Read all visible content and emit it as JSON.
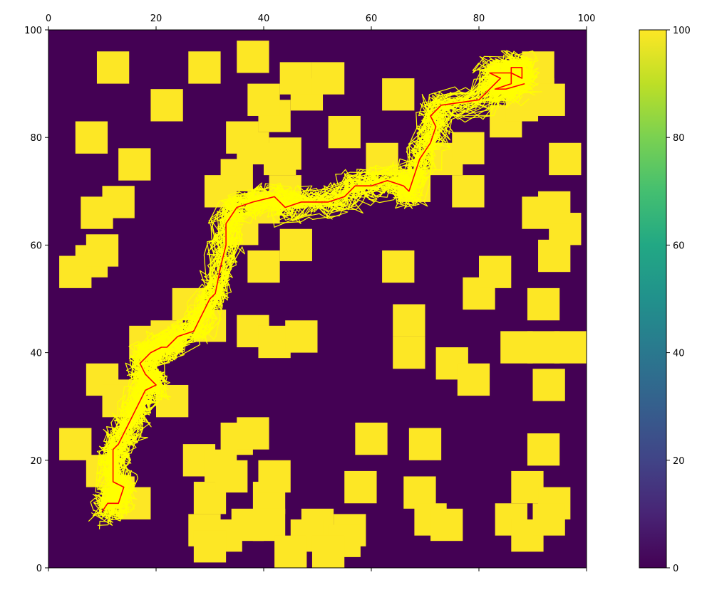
{
  "chart_data": {
    "type": "heatmap",
    "title": "",
    "xlabel": "",
    "ylabel": "",
    "xlim": [
      0,
      100
    ],
    "ylim": [
      0,
      100
    ],
    "x_ticks": [
      "0",
      "20",
      "40",
      "60",
      "80",
      "100"
    ],
    "y_ticks": [
      "0",
      "20",
      "40",
      "60",
      "80",
      "100"
    ],
    "grid": false,
    "colormap": "viridis",
    "colors": {
      "background": "#440154",
      "obstacle": "#fde725",
      "trajectories": "#ffff00",
      "best_path": "#ff0000"
    },
    "colorbar": {
      "min": 0,
      "max": 100,
      "ticks": [
        "0",
        "20",
        "40",
        "60",
        "80",
        "100"
      ]
    },
    "obstacles": [
      [
        86,
        9
      ],
      [
        89,
        15
      ],
      [
        10,
        18
      ],
      [
        15,
        32
      ],
      [
        13,
        14
      ],
      [
        16,
        12
      ],
      [
        30,
        13
      ],
      [
        34,
        17
      ],
      [
        41,
        13
      ],
      [
        41,
        8
      ],
      [
        29,
        7
      ],
      [
        37,
        8
      ],
      [
        58,
        15
      ],
      [
        5,
        23
      ],
      [
        28,
        20
      ],
      [
        32,
        19
      ],
      [
        35,
        24
      ],
      [
        38,
        25
      ],
      [
        42,
        17
      ],
      [
        50,
        8
      ],
      [
        48,
        6
      ],
      [
        56,
        7
      ],
      [
        55,
        5
      ],
      [
        52,
        3
      ],
      [
        33,
        6
      ],
      [
        30,
        4
      ],
      [
        45,
        3
      ],
      [
        69,
        14
      ],
      [
        71,
        9
      ],
      [
        74,
        8
      ],
      [
        70,
        23
      ],
      [
        89,
        6
      ],
      [
        94,
        12
      ],
      [
        93,
        9
      ],
      [
        92,
        22
      ],
      [
        60,
        24
      ],
      [
        23,
        31
      ],
      [
        18,
        42
      ],
      [
        22,
        43
      ],
      [
        26,
        49
      ],
      [
        30,
        45
      ],
      [
        38,
        44
      ],
      [
        42,
        42
      ],
      [
        47,
        43
      ],
      [
        10,
        35
      ],
      [
        13,
        31
      ],
      [
        8,
        57
      ],
      [
        5,
        55
      ],
      [
        10,
        59
      ],
      [
        67,
        40
      ],
      [
        67,
        46
      ],
      [
        75,
        38
      ],
      [
        79,
        35
      ],
      [
        80,
        51
      ],
      [
        83,
        55
      ],
      [
        87,
        41
      ],
      [
        92,
        41
      ],
      [
        97,
        41
      ],
      [
        93,
        34
      ],
      [
        92,
        49
      ],
      [
        94,
        58
      ],
      [
        96,
        63
      ],
      [
        94,
        67
      ],
      [
        91,
        66
      ],
      [
        96,
        76
      ],
      [
        65,
        56
      ],
      [
        46,
        60
      ],
      [
        40,
        56
      ],
      [
        36,
        63
      ],
      [
        40,
        67
      ],
      [
        35,
        73
      ],
      [
        32,
        70
      ],
      [
        44,
        70
      ],
      [
        36,
        80
      ],
      [
        38,
        78
      ],
      [
        44,
        77
      ],
      [
        43,
        76
      ],
      [
        42,
        84
      ],
      [
        40,
        87
      ],
      [
        48,
        88
      ],
      [
        52,
        91
      ],
      [
        46,
        91
      ],
      [
        38,
        95
      ],
      [
        22,
        86
      ],
      [
        29,
        93
      ],
      [
        8,
        80
      ],
      [
        12,
        93
      ],
      [
        16,
        75
      ],
      [
        13,
        68
      ],
      [
        9,
        66
      ],
      [
        55,
        81
      ],
      [
        65,
        88
      ],
      [
        62,
        76
      ],
      [
        68,
        71
      ],
      [
        74,
        76
      ],
      [
        78,
        70
      ],
      [
        78,
        78
      ],
      [
        85,
        83
      ],
      [
        88,
        86
      ],
      [
        91,
        88
      ],
      [
        91,
        93
      ],
      [
        85,
        91
      ],
      [
        93,
        87
      ]
    ],
    "best_path": [
      [
        88.5,
        90
      ],
      [
        85,
        89
      ],
      [
        83,
        89
      ],
      [
        86,
        90
      ],
      [
        86,
        93
      ],
      [
        88,
        93
      ],
      [
        88,
        91
      ],
      [
        86,
        92
      ],
      [
        82,
        92
      ],
      [
        84,
        91
      ],
      [
        80,
        87
      ],
      [
        73,
        86
      ],
      [
        71,
        84
      ],
      [
        72,
        82
      ],
      [
        71,
        79
      ],
      [
        69,
        76
      ],
      [
        68,
        73
      ],
      [
        67,
        70
      ],
      [
        66,
        71
      ],
      [
        63,
        72
      ],
      [
        60,
        71
      ],
      [
        57,
        71
      ],
      [
        55,
        69
      ],
      [
        52,
        68
      ],
      [
        47,
        68
      ],
      [
        44,
        67
      ],
      [
        42,
        69
      ],
      [
        38,
        68
      ],
      [
        35,
        67
      ],
      [
        33,
        64
      ],
      [
        33,
        60
      ],
      [
        32,
        56
      ],
      [
        31,
        51
      ],
      [
        30,
        50
      ],
      [
        28,
        46
      ],
      [
        27,
        44
      ],
      [
        24,
        43
      ],
      [
        22,
        41
      ],
      [
        21,
        41
      ],
      [
        19,
        40
      ],
      [
        17,
        38
      ],
      [
        18,
        36
      ],
      [
        19,
        35
      ],
      [
        20,
        34
      ],
      [
        18,
        33
      ],
      [
        17,
        31
      ],
      [
        16,
        29
      ],
      [
        15,
        27
      ],
      [
        14,
        25
      ],
      [
        13,
        23
      ],
      [
        12,
        22
      ],
      [
        12,
        20
      ],
      [
        12,
        16
      ],
      [
        14,
        15
      ],
      [
        13,
        12
      ],
      [
        11,
        12
      ],
      [
        10,
        10.5
      ]
    ]
  }
}
